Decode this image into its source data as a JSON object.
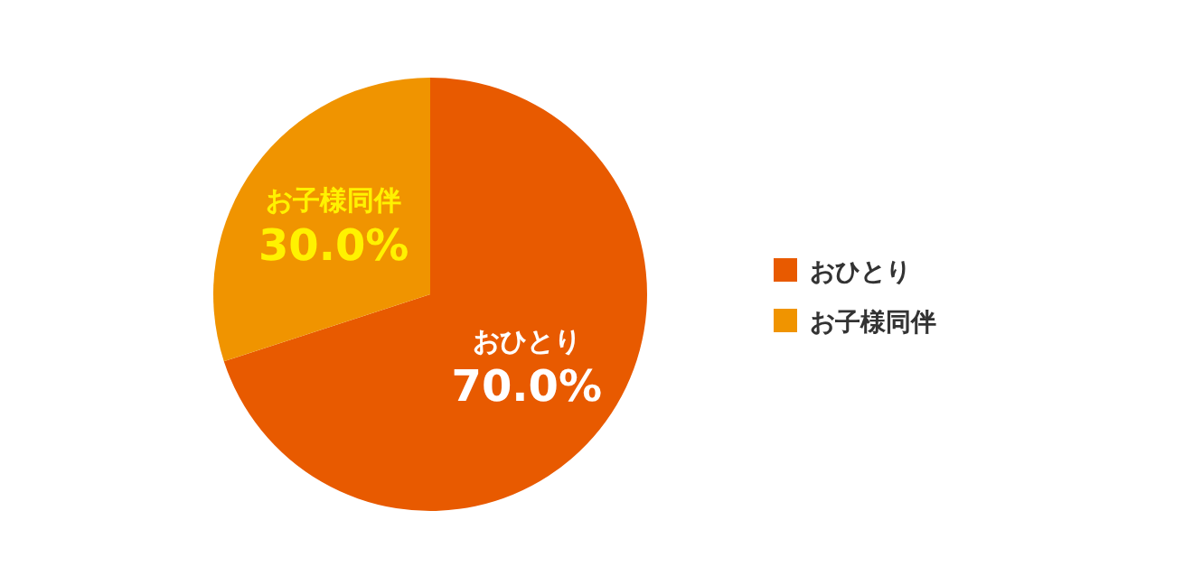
{
  "chart_data": {
    "type": "pie",
    "categories": [
      "おひとり",
      "お子様同伴"
    ],
    "values": [
      70,
      30
    ],
    "colors": [
      "#e85a00",
      "#f09400"
    ],
    "value_labels": [
      "70.0%",
      "30.0%"
    ],
    "legend": "right"
  }
}
